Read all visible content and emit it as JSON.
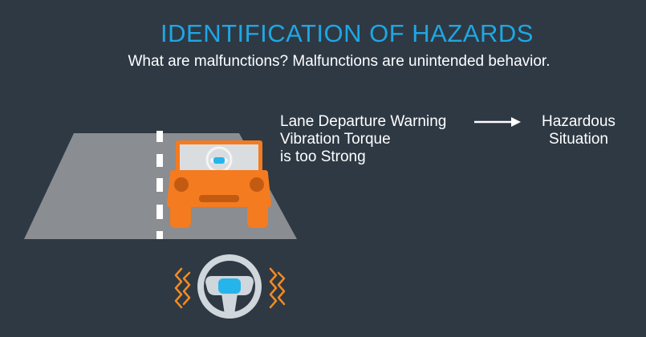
{
  "slide": {
    "title": "IDENTIFICATION OF HAZARDS",
    "subtitle": "What are malfunctions?  Malfunctions are unintended behavior."
  },
  "malfunction": {
    "lines": [
      "Lane Departure Warning",
      "Vibration Torque",
      "is too Strong"
    ]
  },
  "result": {
    "lines": [
      "Hazardous",
      "Situation"
    ]
  },
  "colors": {
    "background": "#2e3944",
    "title": "#1ea7e4",
    "road": "#8a8d91",
    "car": "#f47b20",
    "wheel": "#cfd6dc",
    "hub": "#25b5ea",
    "vibration": "#f28a20"
  },
  "icons": {
    "car": "car-icon",
    "wheel": "steering-wheel-icon",
    "vibration": "vibration-icon",
    "arrow": "arrow-right-icon"
  }
}
